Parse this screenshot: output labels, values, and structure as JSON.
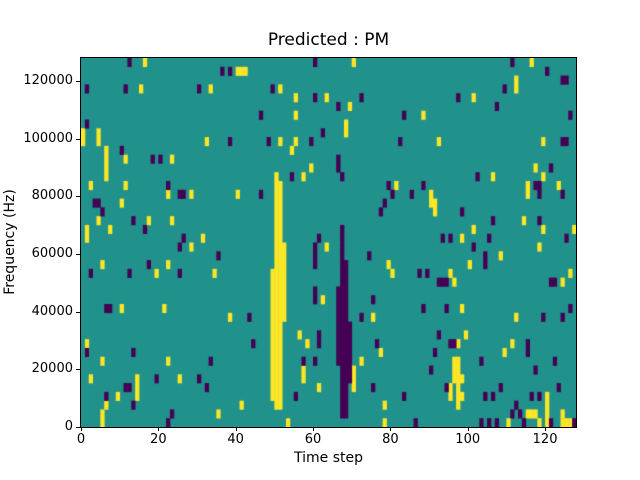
{
  "figure": {
    "title": "Predicted : PM",
    "xlabel": "Time step",
    "ylabel": "Frequency (Hz)"
  },
  "chart_data": {
    "type": "heatmap",
    "title": "Predicted : PM",
    "xlabel": "Time step",
    "ylabel": "Frequency (Hz)",
    "x_range": [
      0,
      128
    ],
    "y_range": [
      0,
      128000
    ],
    "x_ticks": [
      0,
      20,
      40,
      60,
      80,
      100,
      120
    ],
    "y_ticks": [
      0,
      20000,
      40000,
      60000,
      80000,
      100000,
      120000
    ],
    "grid": {
      "cols": 128,
      "rows": 42
    },
    "legend": "none",
    "colors": {
      "background_mid": "#21918c",
      "high_yellow": "#fde725",
      "low_dark": "#440154",
      "spine": "#000000"
    },
    "cells_note": "runs are [timeStepColumn, rowFromTopStart, rowFromTopEnd]; rows count down from 128000 Hz (row 0) to 0 Hz (row 41)",
    "yellow_runs": [
      [
        16,
        0,
        0
      ],
      [
        40,
        1,
        1
      ],
      [
        41,
        1,
        1
      ],
      [
        15,
        3,
        3
      ],
      [
        33,
        3,
        3
      ],
      [
        0,
        8,
        9
      ],
      [
        4,
        8,
        9
      ],
      [
        32,
        9,
        9
      ],
      [
        6,
        10,
        13
      ],
      [
        11,
        11,
        11
      ],
      [
        23,
        11,
        11
      ],
      [
        2,
        14,
        14
      ],
      [
        11,
        14,
        14
      ],
      [
        22,
        15,
        15
      ],
      [
        28,
        15,
        15
      ],
      [
        40,
        15,
        15
      ],
      [
        10,
        16,
        16
      ],
      [
        4,
        18,
        18
      ],
      [
        17,
        18,
        18
      ],
      [
        23,
        18,
        18
      ],
      [
        7,
        19,
        19
      ],
      [
        1,
        19,
        20
      ],
      [
        31,
        20,
        20
      ],
      [
        70,
        0,
        0
      ],
      [
        42,
        1,
        1
      ],
      [
        51,
        3,
        3
      ],
      [
        55,
        4,
        4
      ],
      [
        63,
        4,
        4
      ],
      [
        69,
        5,
        5
      ],
      [
        55,
        6,
        6
      ],
      [
        68,
        7,
        8
      ],
      [
        51,
        9,
        9
      ],
      [
        55,
        9,
        9
      ],
      [
        54,
        10,
        10
      ],
      [
        59,
        12,
        12
      ],
      [
        57,
        13,
        13
      ],
      [
        81,
        14,
        14
      ],
      [
        116,
        0,
        0
      ],
      [
        112,
        2,
        3
      ],
      [
        101,
        4,
        4
      ],
      [
        88,
        6,
        6
      ],
      [
        92,
        9,
        9
      ],
      [
        119,
        9,
        9
      ],
      [
        117,
        12,
        12
      ],
      [
        106,
        13,
        13
      ],
      [
        119,
        13,
        13
      ],
      [
        115,
        14,
        15
      ],
      [
        123,
        14,
        14
      ],
      [
        90,
        15,
        16
      ],
      [
        91,
        16,
        17
      ],
      [
        114,
        18,
        18
      ],
      [
        101,
        19,
        19
      ],
      [
        119,
        19,
        19
      ],
      [
        127,
        19,
        19
      ],
      [
        98,
        20,
        20
      ],
      [
        28,
        21,
        21
      ],
      [
        5,
        23,
        23
      ],
      [
        22,
        23,
        23
      ],
      [
        19,
        24,
        24
      ],
      [
        34,
        24,
        24
      ],
      [
        10,
        28,
        28
      ],
      [
        21,
        28,
        28
      ],
      [
        38,
        29,
        29
      ],
      [
        1,
        32,
        33
      ],
      [
        5,
        34,
        34
      ],
      [
        22,
        34,
        34
      ],
      [
        2,
        36,
        36
      ],
      [
        14,
        36,
        38
      ],
      [
        25,
        36,
        36
      ],
      [
        9,
        38,
        38
      ],
      [
        6,
        39,
        39
      ],
      [
        41,
        39,
        39
      ],
      [
        5,
        40,
        41
      ],
      [
        35,
        40,
        40
      ],
      [
        50,
        13,
        39
      ],
      [
        51,
        14,
        39
      ],
      [
        49,
        24,
        38
      ],
      [
        52,
        21,
        29
      ],
      [
        63,
        21,
        21
      ],
      [
        79,
        23,
        23
      ],
      [
        80,
        24,
        24
      ],
      [
        62,
        27,
        27
      ],
      [
        75,
        29,
        29
      ],
      [
        56,
        31,
        31
      ],
      [
        58,
        32,
        32
      ],
      [
        77,
        33,
        33
      ],
      [
        72,
        34,
        34
      ],
      [
        57,
        35,
        36
      ],
      [
        70,
        35,
        37
      ],
      [
        61,
        37,
        37
      ],
      [
        78,
        39,
        39
      ],
      [
        53,
        41,
        41
      ],
      [
        78,
        41,
        41
      ],
      [
        118,
        21,
        21
      ],
      [
        108,
        22,
        22
      ],
      [
        100,
        23,
        23
      ],
      [
        95,
        24,
        24
      ],
      [
        126,
        24,
        24
      ],
      [
        96,
        25,
        25
      ],
      [
        124,
        25,
        25
      ],
      [
        98,
        28,
        28
      ],
      [
        112,
        29,
        29
      ],
      [
        99,
        31,
        31
      ],
      [
        97,
        32,
        32
      ],
      [
        111,
        32,
        32
      ],
      [
        109,
        33,
        33
      ],
      [
        96,
        34,
        36
      ],
      [
        97,
        34,
        39
      ],
      [
        95,
        37,
        38
      ],
      [
        98,
        36,
        36
      ],
      [
        98,
        38,
        38
      ],
      [
        120,
        38,
        41
      ],
      [
        115,
        40,
        40
      ],
      [
        116,
        40,
        40
      ],
      [
        117,
        40,
        40
      ],
      [
        124,
        40,
        40
      ],
      [
        110,
        41,
        41
      ],
      [
        118,
        41,
        41
      ],
      [
        124,
        41,
        41
      ],
      [
        125,
        41,
        41
      ],
      [
        126,
        41,
        41
      ]
    ],
    "dark_runs": [
      [
        12,
        0,
        0
      ],
      [
        36,
        1,
        1
      ],
      [
        38,
        1,
        1
      ],
      [
        1,
        3,
        3
      ],
      [
        11,
        3,
        3
      ],
      [
        30,
        3,
        3
      ],
      [
        1,
        7,
        7
      ],
      [
        38,
        9,
        9
      ],
      [
        10,
        10,
        10
      ],
      [
        18,
        11,
        11
      ],
      [
        20,
        11,
        11
      ],
      [
        22,
        14,
        14
      ],
      [
        25,
        15,
        15
      ],
      [
        26,
        15,
        15
      ],
      [
        3,
        16,
        16
      ],
      [
        4,
        16,
        16
      ],
      [
        5,
        17,
        17
      ],
      [
        13,
        18,
        18
      ],
      [
        16,
        19,
        19
      ],
      [
        26,
        20,
        20
      ],
      [
        60,
        0,
        0
      ],
      [
        49,
        3,
        3
      ],
      [
        60,
        4,
        4
      ],
      [
        72,
        4,
        4
      ],
      [
        66,
        5,
        5
      ],
      [
        46,
        6,
        6
      ],
      [
        83,
        6,
        6
      ],
      [
        62,
        8,
        8
      ],
      [
        48,
        9,
        9
      ],
      [
        59,
        9,
        9
      ],
      [
        82,
        9,
        9
      ],
      [
        66,
        11,
        12
      ],
      [
        54,
        13,
        13
      ],
      [
        67,
        13,
        13
      ],
      [
        79,
        14,
        14
      ],
      [
        46,
        15,
        15
      ],
      [
        80,
        15,
        15
      ],
      [
        78,
        16,
        16
      ],
      [
        77,
        17,
        17
      ],
      [
        67,
        19,
        20
      ],
      [
        61,
        20,
        20
      ],
      [
        111,
        0,
        0
      ],
      [
        120,
        1,
        1
      ],
      [
        124,
        2,
        2
      ],
      [
        125,
        2,
        2
      ],
      [
        109,
        3,
        3
      ],
      [
        97,
        4,
        4
      ],
      [
        107,
        5,
        5
      ],
      [
        126,
        6,
        6
      ],
      [
        124,
        9,
        9
      ],
      [
        125,
        9,
        9
      ],
      [
        121,
        12,
        12
      ],
      [
        102,
        13,
        13
      ],
      [
        88,
        14,
        14
      ],
      [
        117,
        14,
        14
      ],
      [
        118,
        14,
        15
      ],
      [
        85,
        15,
        15
      ],
      [
        124,
        15,
        15
      ],
      [
        98,
        17,
        17
      ],
      [
        106,
        18,
        18
      ],
      [
        118,
        18,
        18
      ],
      [
        93,
        20,
        20
      ],
      [
        95,
        20,
        20
      ],
      [
        105,
        20,
        20
      ],
      [
        125,
        20,
        20
      ],
      [
        25,
        21,
        21
      ],
      [
        35,
        22,
        22
      ],
      [
        17,
        23,
        23
      ],
      [
        2,
        24,
        24
      ],
      [
        12,
        24,
        24
      ],
      [
        25,
        24,
        24
      ],
      [
        6,
        28,
        28
      ],
      [
        7,
        28,
        28
      ],
      [
        1,
        33,
        33
      ],
      [
        13,
        33,
        33
      ],
      [
        33,
        34,
        34
      ],
      [
        19,
        36,
        36
      ],
      [
        30,
        36,
        36
      ],
      [
        11,
        37,
        37
      ],
      [
        12,
        37,
        37
      ],
      [
        32,
        37,
        37
      ],
      [
        6,
        38,
        38
      ],
      [
        13,
        39,
        39
      ],
      [
        23,
        40,
        40
      ],
      [
        22,
        41,
        41
      ],
      [
        67,
        21,
        40
      ],
      [
        68,
        23,
        40
      ],
      [
        66,
        26,
        34
      ],
      [
        69,
        30,
        36
      ],
      [
        60,
        21,
        23
      ],
      [
        74,
        22,
        22
      ],
      [
        60,
        26,
        27
      ],
      [
        75,
        27,
        27
      ],
      [
        43,
        29,
        29
      ],
      [
        72,
        29,
        29
      ],
      [
        61,
        31,
        31
      ],
      [
        44,
        32,
        32
      ],
      [
        61,
        32,
        32
      ],
      [
        76,
        32,
        32
      ],
      [
        57,
        34,
        34
      ],
      [
        60,
        34,
        34
      ],
      [
        75,
        37,
        37
      ],
      [
        55,
        38,
        38
      ],
      [
        83,
        38,
        38
      ],
      [
        101,
        21,
        21
      ],
      [
        104,
        22,
        23
      ],
      [
        87,
        24,
        24
      ],
      [
        89,
        24,
        24
      ],
      [
        92,
        25,
        25
      ],
      [
        93,
        25,
        25
      ],
      [
        94,
        25,
        25
      ],
      [
        121,
        25,
        25
      ],
      [
        122,
        25,
        25
      ],
      [
        88,
        28,
        28
      ],
      [
        94,
        28,
        28
      ],
      [
        126,
        28,
        28
      ],
      [
        119,
        29,
        29
      ],
      [
        124,
        29,
        29
      ],
      [
        92,
        31,
        31
      ],
      [
        95,
        32,
        32
      ],
      [
        96,
        32,
        32
      ],
      [
        115,
        32,
        33
      ],
      [
        91,
        33,
        33
      ],
      [
        103,
        34,
        34
      ],
      [
        122,
        34,
        34
      ],
      [
        90,
        35,
        35
      ],
      [
        117,
        35,
        35
      ],
      [
        94,
        37,
        37
      ],
      [
        108,
        37,
        37
      ],
      [
        123,
        37,
        37
      ],
      [
        104,
        38,
        38
      ],
      [
        106,
        38,
        38
      ],
      [
        116,
        38,
        38
      ],
      [
        118,
        38,
        38
      ],
      [
        112,
        39,
        39
      ],
      [
        111,
        40,
        40
      ],
      [
        113,
        40,
        40
      ],
      [
        86,
        41,
        41
      ],
      [
        103,
        41,
        41
      ],
      [
        105,
        41,
        41
      ],
      [
        107,
        41,
        41
      ],
      [
        114,
        41,
        41
      ],
      [
        121,
        41,
        41
      ],
      [
        127,
        41,
        41
      ]
    ]
  }
}
